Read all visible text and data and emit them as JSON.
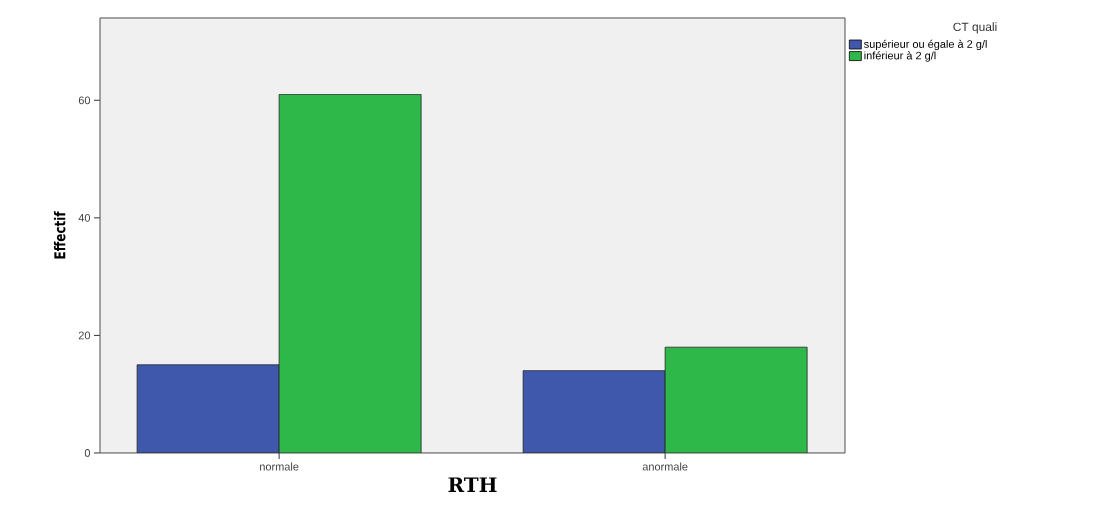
{
  "chart_data": {
    "type": "bar",
    "xlabel": "RTH",
    "ylabel": "Effectif",
    "legend_title": "CT quali",
    "categories": [
      "normale",
      "anormale"
    ],
    "series": [
      {
        "name": "supérieur ou égale à 2 g/l",
        "color": "#3f58ab",
        "values": [
          15,
          14
        ]
      },
      {
        "name": "inférieur à 2 g/l",
        "color": "#2fb84a",
        "values": [
          61,
          18
        ]
      }
    ],
    "ylim": [
      0,
      74
    ],
    "yticks": [
      0,
      20,
      40,
      60
    ],
    "grid": false,
    "legend": "right"
  }
}
